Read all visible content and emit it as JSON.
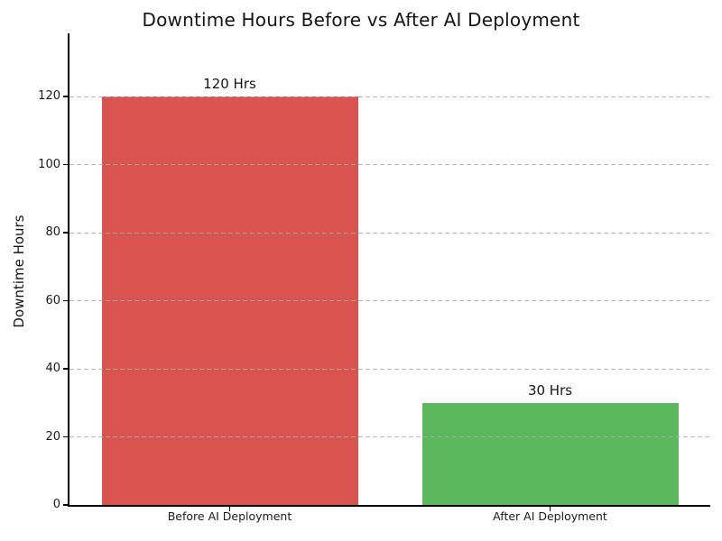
{
  "chart_data": {
    "type": "bar",
    "title": "Downtime Hours Before vs After AI Deployment",
    "xlabel": "",
    "ylabel": "Downtime Hours",
    "categories": [
      "Before AI Deployment",
      "After AI Deployment"
    ],
    "values": [
      120,
      30
    ],
    "bar_labels": [
      "120 Hrs",
      "30 Hrs"
    ],
    "bar_colors": [
      "#d9534f",
      "#5cb85c"
    ],
    "yticks": [
      0,
      20,
      40,
      60,
      80,
      100,
      120
    ],
    "ylim": [
      0,
      138.3
    ],
    "bar_width_fraction": 0.8,
    "grid": "horizontal dashed, drawn over bars",
    "legend": "none",
    "colors": {
      "title": "#141414",
      "axis_spine": "#000000",
      "gridline": "#bdbdbd",
      "tick_label": "#1a1a1a",
      "background": "#ffffff"
    }
  }
}
